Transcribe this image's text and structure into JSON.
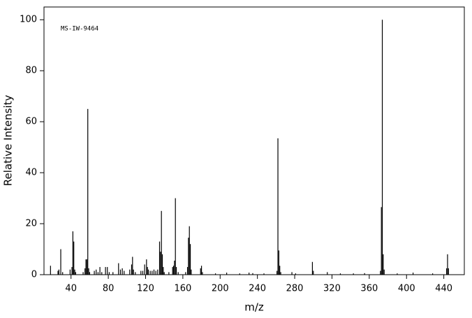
{
  "chart_data": {
    "type": "stem",
    "annotation": "MS-IW-9464",
    "x_label": "m/z",
    "y_label": "Relative Intensity",
    "color": "#000000",
    "xlim": [
      11,
      462
    ],
    "ylim": [
      0,
      105
    ],
    "xticks": [
      40,
      80,
      120,
      160,
      200,
      240,
      280,
      320,
      360,
      400,
      440
    ],
    "yticks": [
      0,
      20,
      40,
      60,
      80,
      100
    ],
    "x": [
      18,
      26,
      27,
      29,
      31,
      39,
      41,
      42,
      43,
      44,
      45,
      53,
      55,
      56,
      57,
      58,
      59,
      60,
      65,
      67,
      69,
      71,
      73,
      77,
      79,
      81,
      85,
      91,
      93,
      95,
      97,
      103,
      105,
      106,
      107,
      109,
      115,
      117,
      119,
      121,
      122,
      123,
      125,
      127,
      129,
      131,
      133,
      135,
      136,
      137,
      138,
      139,
      140,
      145,
      149,
      150,
      151,
      152,
      153,
      155,
      163,
      165,
      166,
      167,
      168,
      169,
      179,
      180,
      181,
      195,
      207,
      221,
      231,
      235,
      247,
      261,
      262,
      263,
      264,
      265,
      277,
      281,
      299,
      300,
      315,
      329,
      343,
      355,
      372,
      373,
      374,
      375,
      376,
      390,
      407,
      428,
      443,
      444,
      445
    ],
    "values": [
      3.5,
      1.5,
      2,
      10,
      1,
      2,
      3,
      17,
      13,
      2,
      1,
      1,
      2.5,
      6,
      6,
      65,
      2.5,
      1,
      1.5,
      2,
      1,
      3,
      1,
      3,
      3,
      1,
      1,
      4.5,
      2,
      2.5,
      1.5,
      2,
      4,
      7,
      2,
      1,
      1.5,
      1.5,
      4,
      6,
      3,
      2,
      1.5,
      1.5,
      2,
      1.5,
      2,
      13,
      9,
      25,
      8,
      3,
      1,
      1,
      3,
      3.5,
      5.5,
      30,
      3,
      1,
      1,
      3,
      14.5,
      19,
      12,
      2,
      2.5,
      3.5,
      1,
      0.5,
      0.8,
      0.5,
      0.8,
      0.6,
      0.5,
      1.5,
      53.5,
      9.5,
      3.5,
      1,
      1,
      0.5,
      5,
      1.5,
      1,
      0.5,
      0.5,
      0.6,
      1.5,
      26.5,
      100,
      8,
      2,
      0.5,
      0.8,
      0.5,
      2.5,
      8,
      2.5
    ]
  }
}
